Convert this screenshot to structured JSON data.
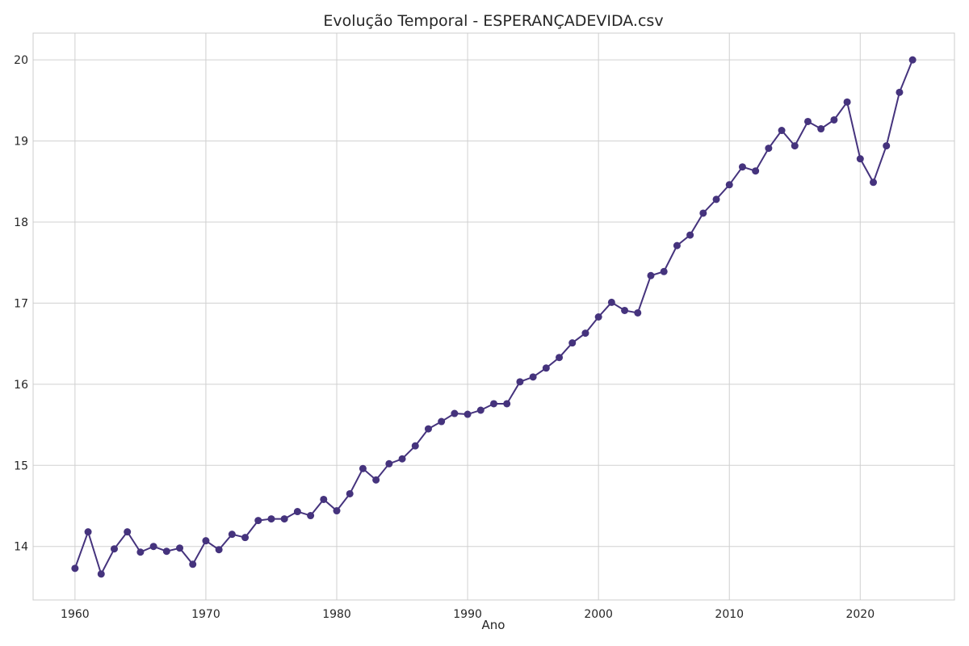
{
  "chart_data": {
    "type": "line",
    "title": "Evolução Temporal - ESPERANÇADEVIDA.csv",
    "xlabel": "Ano",
    "ylabel": "",
    "xlim": [
      1956.8,
      2027.2
    ],
    "ylim": [
      13.34,
      20.33
    ],
    "xticks": [
      1960,
      1970,
      1980,
      1990,
      2000,
      2010,
      2020
    ],
    "yticks": [
      14,
      15,
      16,
      17,
      18,
      19,
      20
    ],
    "grid": true,
    "line_color": "#45337d",
    "x": [
      1960,
      1961,
      1962,
      1963,
      1964,
      1965,
      1966,
      1967,
      1968,
      1969,
      1970,
      1971,
      1972,
      1973,
      1974,
      1975,
      1976,
      1977,
      1978,
      1979,
      1980,
      1981,
      1982,
      1983,
      1984,
      1985,
      1986,
      1987,
      1988,
      1989,
      1990,
      1991,
      1992,
      1993,
      1994,
      1995,
      1996,
      1997,
      1998,
      1999,
      2000,
      2001,
      2002,
      2003,
      2004,
      2005,
      2006,
      2007,
      2008,
      2009,
      2010,
      2011,
      2012,
      2013,
      2014,
      2015,
      2016,
      2017,
      2018,
      2019,
      2020,
      2021,
      2022,
      2023,
      2024
    ],
    "values": [
      13.73,
      14.18,
      13.66,
      13.97,
      14.18,
      13.93,
      14.0,
      13.94,
      13.98,
      13.78,
      14.07,
      13.96,
      14.15,
      14.11,
      14.32,
      14.34,
      14.34,
      14.43,
      14.38,
      14.58,
      14.44,
      14.65,
      14.96,
      14.82,
      15.02,
      15.08,
      15.24,
      15.45,
      15.54,
      15.64,
      15.63,
      15.68,
      15.76,
      15.76,
      16.03,
      16.09,
      16.2,
      16.33,
      16.51,
      16.63,
      16.83,
      17.01,
      16.91,
      16.88,
      17.34,
      17.39,
      17.71,
      17.84,
      18.11,
      18.28,
      18.46,
      18.68,
      18.63,
      18.91,
      19.13,
      18.94,
      19.24,
      19.15,
      19.26,
      19.48,
      18.78,
      18.49,
      18.94,
      19.6,
      20.0
    ]
  }
}
